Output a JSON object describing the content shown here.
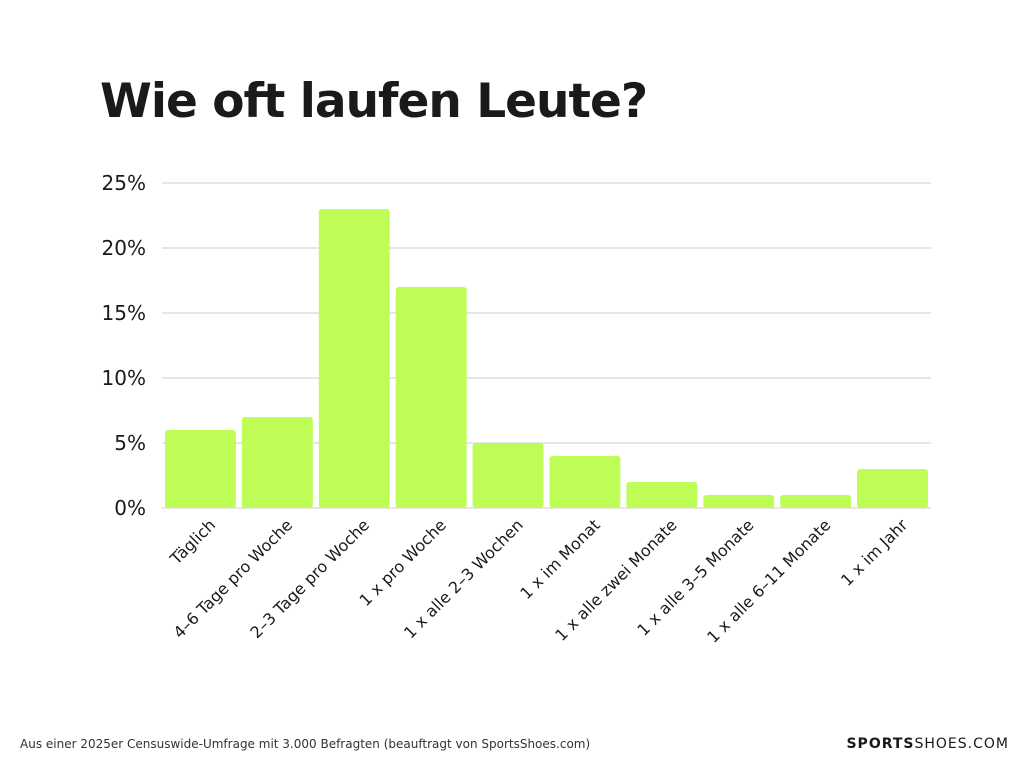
{
  "chart_data": {
    "type": "bar",
    "title": "Wie oft laufen Leute?",
    "categories": [
      "Täglich",
      "4–6 Tage pro Woche",
      "2–3 Tage pro Woche",
      "1 x pro Woche",
      "1 x alle 2–3 Wochen",
      "1 x im Monat",
      "1 x alle zwei Monate",
      "1 x alle 3–5 Monate",
      "1 x alle 6–11 Monate",
      "1 x im Jahr"
    ],
    "values": [
      6,
      7,
      23,
      17,
      5,
      4,
      2,
      1,
      1,
      3
    ],
    "ylim": [
      0,
      25
    ],
    "yticks": [
      0,
      5,
      10,
      15,
      20,
      25
    ],
    "ytick_labels": [
      "0%",
      "5%",
      "10%",
      "15%",
      "20%",
      "25%"
    ],
    "grid": true,
    "bar_color": "#bdfd56",
    "grid_color": "#cccccc"
  },
  "footnote": "Aus einer 2025er Censuswide-Umfrage mit 3.000 Befragten (beauftragt von SportsShoes.com)",
  "brand": {
    "bold_part": "SPORTS",
    "light_part": "SHOES.COM"
  }
}
